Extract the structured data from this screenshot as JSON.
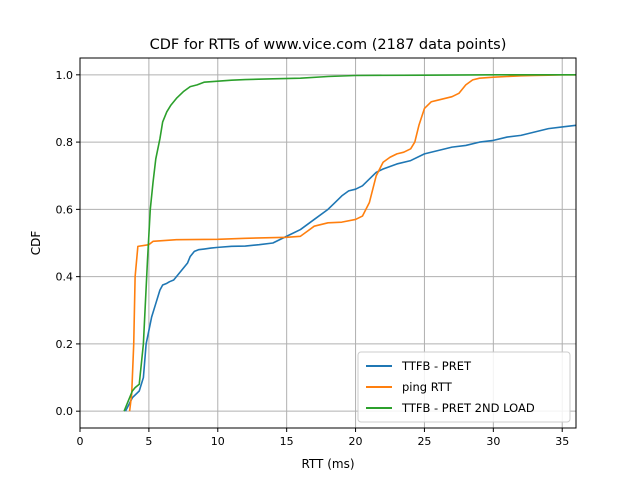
{
  "chart_data": {
    "type": "line",
    "title": "CDF for RTTs of www.vice.com (2187 data points)",
    "xlabel": "RTT (ms)",
    "ylabel": "CDF",
    "xlim": [
      0,
      36
    ],
    "ylim": [
      -0.05,
      1.05
    ],
    "xticks": [
      0,
      5,
      10,
      15,
      20,
      25,
      30,
      35
    ],
    "yticks": [
      0.0,
      0.2,
      0.4,
      0.6,
      0.8,
      1.0
    ],
    "xtick_labels": [
      "0",
      "5",
      "10",
      "15",
      "20",
      "25",
      "30",
      "35"
    ],
    "ytick_labels": [
      "0.0",
      "0.2",
      "0.4",
      "0.6",
      "0.8",
      "1.0"
    ],
    "grid": true,
    "legend_position": "lower-right",
    "series": [
      {
        "name": "TTFB - PRET",
        "color": "#1f77b4",
        "x": [
          3.3,
          3.8,
          4.3,
          4.6,
          4.8,
          5.0,
          5.2,
          5.5,
          5.8,
          6.0,
          6.3,
          6.5,
          6.8,
          7.0,
          7.4,
          7.8,
          8.0,
          8.3,
          8.6,
          9.0,
          9.5,
          10.0,
          11.0,
          12.0,
          13.0,
          14.0,
          15.0,
          16.0,
          17.0,
          18.0,
          18.5,
          19.0,
          19.5,
          20.0,
          20.5,
          21.0,
          21.5,
          22.0,
          23.0,
          24.0,
          25.0,
          26.0,
          27.0,
          28.0,
          29.0,
          30.0,
          31.0,
          32.0,
          33.0,
          34.0,
          35.0,
          36.0
        ],
        "y": [
          0.0,
          0.04,
          0.06,
          0.1,
          0.2,
          0.24,
          0.28,
          0.32,
          0.36,
          0.375,
          0.38,
          0.385,
          0.39,
          0.4,
          0.42,
          0.44,
          0.46,
          0.475,
          0.48,
          0.482,
          0.485,
          0.487,
          0.49,
          0.491,
          0.495,
          0.5,
          0.52,
          0.54,
          0.57,
          0.6,
          0.62,
          0.64,
          0.655,
          0.66,
          0.67,
          0.69,
          0.71,
          0.72,
          0.735,
          0.745,
          0.765,
          0.775,
          0.785,
          0.79,
          0.8,
          0.805,
          0.815,
          0.82,
          0.83,
          0.84,
          0.845,
          0.85
        ]
      },
      {
        "name": "ping RTT",
        "color": "#ff7f0e",
        "x": [
          3.6,
          3.75,
          3.9,
          4.0,
          4.2,
          5.0,
          5.3,
          7.0,
          10.0,
          12.0,
          15.0,
          16.0,
          16.5,
          17.0,
          18.0,
          19.0,
          20.0,
          20.5,
          21.0,
          21.5,
          22.0,
          22.5,
          23.0,
          23.5,
          24.0,
          24.3,
          24.6,
          25.0,
          25.5,
          26.0,
          27.0,
          27.5,
          28.0,
          28.5,
          29.0,
          30.0,
          31.0,
          32.0,
          33.0,
          34.0,
          35.0,
          36.0
        ],
        "y": [
          0.0,
          0.05,
          0.2,
          0.4,
          0.49,
          0.495,
          0.505,
          0.51,
          0.511,
          0.514,
          0.517,
          0.52,
          0.535,
          0.55,
          0.56,
          0.562,
          0.57,
          0.58,
          0.62,
          0.7,
          0.74,
          0.755,
          0.765,
          0.77,
          0.78,
          0.8,
          0.85,
          0.9,
          0.92,
          0.925,
          0.935,
          0.945,
          0.97,
          0.985,
          0.99,
          0.993,
          0.995,
          0.997,
          0.998,
          0.999,
          1.0,
          1.0
        ]
      },
      {
        "name": "TTFB - PRET 2ND LOAD",
        "color": "#2ca02c",
        "x": [
          3.2,
          3.5,
          3.8,
          4.0,
          4.3,
          4.6,
          4.9,
          5.1,
          5.3,
          5.5,
          5.8,
          6.0,
          6.3,
          6.6,
          7.0,
          7.5,
          8.0,
          8.5,
          9.0,
          10.0,
          11.0,
          12.0,
          14.0,
          16.0,
          18.0,
          20.0,
          25.0,
          30.0,
          36.0
        ],
        "y": [
          0.0,
          0.03,
          0.06,
          0.07,
          0.08,
          0.2,
          0.45,
          0.6,
          0.68,
          0.75,
          0.81,
          0.86,
          0.89,
          0.91,
          0.93,
          0.95,
          0.965,
          0.97,
          0.978,
          0.981,
          0.984,
          0.986,
          0.988,
          0.99,
          0.995,
          0.998,
          0.999,
          1.0,
          1.0
        ]
      }
    ]
  }
}
